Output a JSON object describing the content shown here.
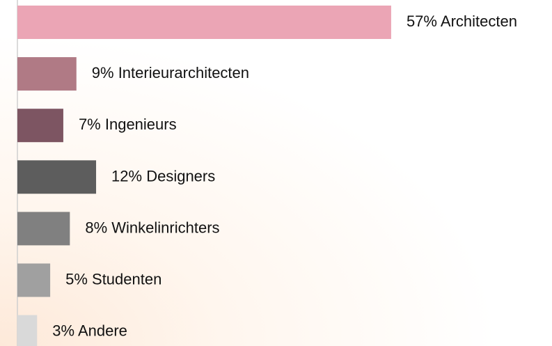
{
  "chart_data": {
    "type": "bar",
    "orientation": "horizontal",
    "categories": [
      "Architecten",
      "Interieurarchitecten",
      "Ingenieurs",
      "Designers",
      "Winkelinrichters",
      "Studenten",
      "Andere"
    ],
    "values": [
      57,
      9,
      7,
      12,
      8,
      5,
      3
    ],
    "value_labels": [
      "57%",
      "9%",
      "7%",
      "12%",
      "8%",
      "5%",
      "3%"
    ],
    "colors": [
      "#eba5b5",
      "#b07a85",
      "#7d5562",
      "#5d5d5d",
      "#808080",
      "#a0a0a0",
      "#d9d9d9"
    ]
  }
}
